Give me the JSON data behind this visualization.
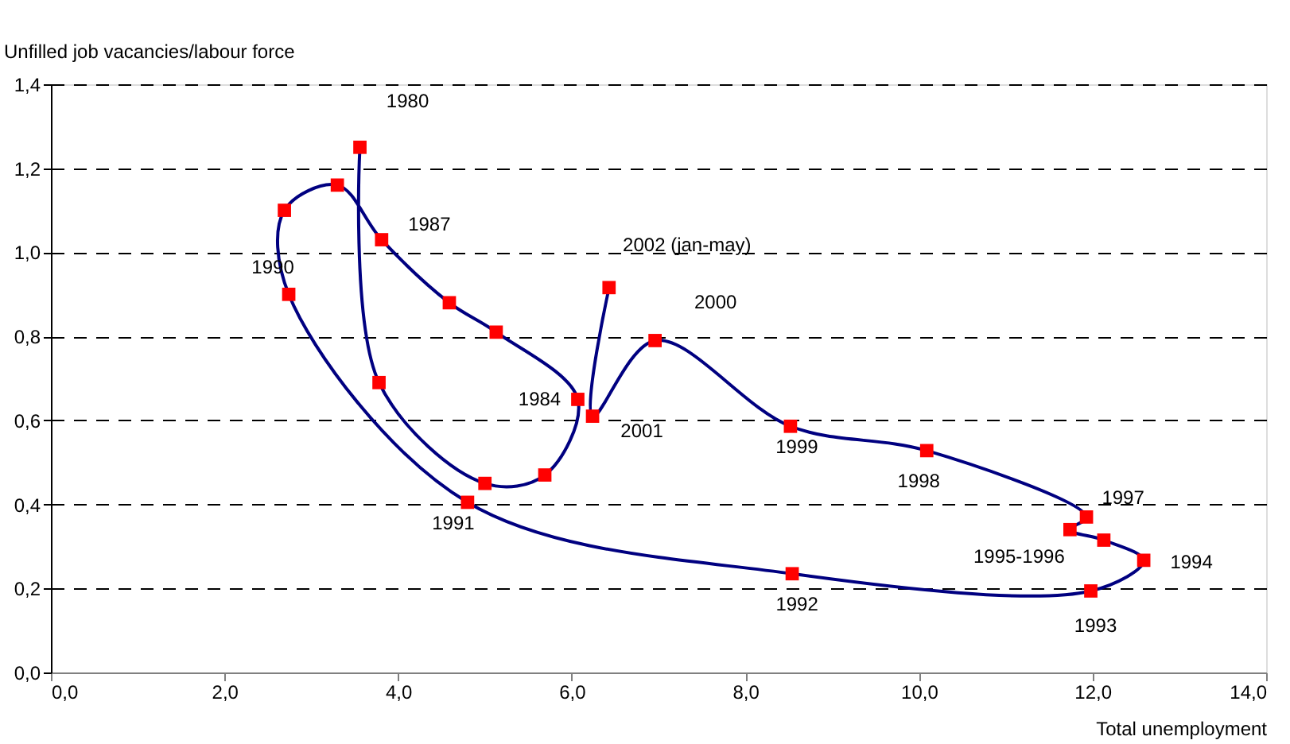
{
  "chart_data": {
    "type": "line",
    "xlabel": "Total unemployment",
    "ylabel": "Unfilled job vacancies/labour force",
    "x": [
      3.56,
      3.78,
      5.0,
      5.69,
      6.07,
      5.13,
      4.59,
      3.81,
      3.3,
      2.69,
      2.74,
      4.8,
      8.54,
      11.98,
      12.59,
      12.13,
      11.74,
      11.93,
      10.09,
      8.52,
      6.96,
      6.24,
      6.43
    ],
    "series": [
      {
        "color": "#000080",
        "colors": [
          "#ff0000",
          "#ff0000",
          "#ff0000",
          "#ff0000",
          "#ff0000",
          "#ff0000",
          "#ff0000",
          "#ff0000",
          "#ff0000",
          "#ff0000",
          "#ff0000",
          "#ff0000",
          "#ff0000",
          "#ff0000",
          "#ff0000",
          "#ff0000",
          "#ff0000",
          "#ff0000",
          "#ff0000",
          "#ff0000",
          "#ff0000",
          "#ff0000",
          "#ff0000"
        ],
        "values": [
          1.25,
          0.69,
          0.45,
          0.47,
          0.65,
          0.81,
          0.88,
          1.03,
          1.16,
          1.1,
          0.9,
          0.405,
          0.235,
          0.194,
          0.267,
          0.315,
          0.34,
          0.37,
          0.528,
          0.586,
          0.79,
          0.61,
          0.916
        ]
      }
    ],
    "marker": "square",
    "line_style": "solid",
    "grid": "y",
    "xlim": [
      0,
      14
    ],
    "ylim": [
      0,
      1.4
    ],
    "xticks": [
      {
        "value": 0,
        "label": "0,0"
      },
      {
        "value": 2,
        "label": "2,0"
      },
      {
        "value": 4,
        "label": "4,0"
      },
      {
        "value": 6,
        "label": "6,0"
      },
      {
        "value": 8,
        "label": "8,0"
      },
      {
        "value": 10,
        "label": "10,0"
      },
      {
        "value": 12,
        "label": "12,0"
      },
      {
        "value": 14,
        "label": "14,0"
      }
    ],
    "yticks": [
      {
        "value": 0,
        "label": "0,0"
      },
      {
        "value": 0.2,
        "label": "0,2"
      },
      {
        "value": 0.4,
        "label": "0,4"
      },
      {
        "value": 0.6,
        "label": "0,6"
      },
      {
        "value": 0.8,
        "label": "0,8"
      },
      {
        "value": 1.0,
        "label": "1,0"
      },
      {
        "value": 1.2,
        "label": "1,2"
      },
      {
        "value": 1.4,
        "label": "1,4"
      }
    ],
    "annotations": [
      {
        "text": "1980",
        "x": 3.56,
        "y": 1.25
      },
      {
        "text": "1987",
        "x": 3.81,
        "y": 1.03
      },
      {
        "text": "2002 (jan-may)",
        "x": 6.43,
        "y": 0.916
      },
      {
        "text": "2000",
        "x": 6.96,
        "y": 0.79
      },
      {
        "text": "1990",
        "x": 2.74,
        "y": 0.9
      },
      {
        "text": "1984",
        "x": 6.07,
        "y": 0.65
      },
      {
        "text": "2001",
        "x": 6.24,
        "y": 0.61
      },
      {
        "text": "1999",
        "x": 8.52,
        "y": 0.586
      },
      {
        "text": "1998",
        "x": 10.09,
        "y": 0.528
      },
      {
        "text": "1997",
        "x": 11.93,
        "y": 0.37
      },
      {
        "text": "1995-1996",
        "x": 11.74,
        "y": 0.34
      },
      {
        "text": "1994",
        "x": 12.59,
        "y": 0.267
      },
      {
        "text": "1993",
        "x": 11.98,
        "y": 0.194
      },
      {
        "text": "1992",
        "x": 8.54,
        "y": 0.235
      },
      {
        "text": "1991",
        "x": 4.8,
        "y": 0.405
      }
    ]
  }
}
